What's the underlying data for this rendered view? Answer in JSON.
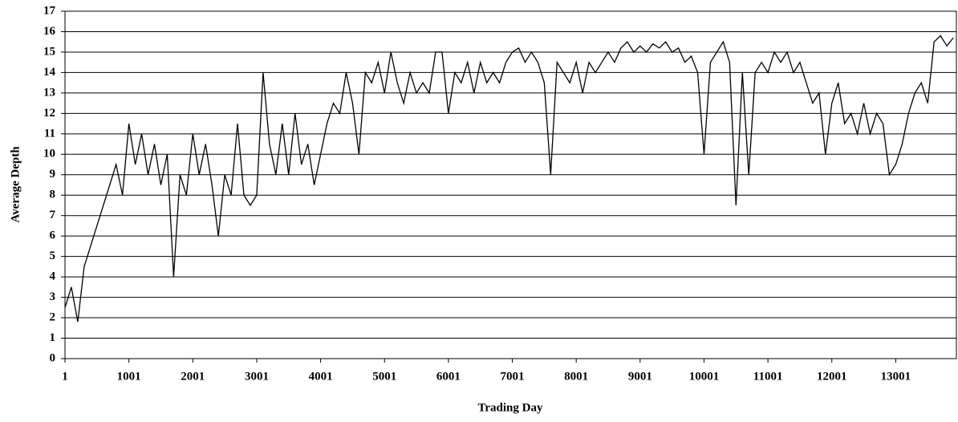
{
  "chart_data": {
    "type": "line",
    "title": null,
    "xlabel": "Trading Day",
    "ylabel": "Average Depth",
    "x": [
      1,
      101,
      201,
      301,
      401,
      501,
      601,
      701,
      801,
      901,
      1001,
      1101,
      1201,
      1301,
      1401,
      1501,
      1601,
      1701,
      1801,
      1901,
      2001,
      2101,
      2201,
      2301,
      2401,
      2501,
      2601,
      2701,
      2801,
      2901,
      3001,
      3101,
      3201,
      3301,
      3401,
      3501,
      3601,
      3701,
      3801,
      3901,
      4001,
      4101,
      4201,
      4301,
      4401,
      4501,
      4601,
      4701,
      4801,
      4901,
      5001,
      5101,
      5201,
      5301,
      5401,
      5501,
      5601,
      5701,
      5801,
      5901,
      6001,
      6101,
      6201,
      6301,
      6401,
      6501,
      6601,
      6701,
      6801,
      6901,
      7001,
      7101,
      7201,
      7301,
      7401,
      7501,
      7601,
      7701,
      7801,
      7901,
      8001,
      8101,
      8201,
      8301,
      8401,
      8501,
      8601,
      8701,
      8801,
      8901,
      9001,
      9101,
      9201,
      9301,
      9401,
      9501,
      9601,
      9701,
      9801,
      9901,
      10001,
      10101,
      10201,
      10301,
      10401,
      10501,
      10601,
      10701,
      10801,
      10901,
      11001,
      11101,
      11201,
      11301,
      11401,
      11501,
      11601,
      11701,
      11801,
      11901,
      12001,
      12101,
      12201,
      12301,
      12401,
      12501,
      12601,
      12701,
      12801,
      12901,
      13001,
      13101,
      13201,
      13301,
      13401,
      13501,
      13601,
      13701,
      13801,
      13901
    ],
    "series": [
      {
        "name": "Average Depth",
        "color": "#000000",
        "values": [
          2.5,
          3.5,
          1.8,
          4.5,
          5.5,
          6.5,
          7.5,
          8.5,
          9.5,
          8,
          11.5,
          9.5,
          11,
          9,
          10.5,
          8.5,
          10,
          4,
          9,
          8,
          11,
          9,
          10.5,
          8.5,
          6,
          9,
          8,
          11.5,
          8,
          7.5,
          8,
          14,
          10.5,
          9,
          11.5,
          9,
          12,
          9.5,
          10.5,
          8.5,
          10,
          11.5,
          12.5,
          12,
          14,
          12.5,
          10,
          14,
          13.5,
          14.5,
          13,
          15,
          13.5,
          12.5,
          14,
          13,
          13.5,
          13,
          15,
          15,
          12,
          14,
          13.5,
          14.5,
          13,
          14.5,
          13.5,
          14,
          13.5,
          14.5,
          15,
          15.2,
          14.5,
          15,
          14.5,
          13.5,
          9,
          14.5,
          14,
          13.5,
          14.5,
          13,
          14.5,
          14,
          14.5,
          15,
          14.5,
          15.2,
          15.5,
          15,
          15.3,
          15,
          15.4,
          15.2,
          15.5,
          15,
          15.2,
          14.5,
          14.8,
          14,
          10,
          14.5,
          15,
          15.5,
          14.5,
          7.5,
          14,
          9,
          14,
          14.5,
          14,
          15,
          14.5,
          15,
          14,
          14.5,
          13.5,
          12.5,
          13,
          10,
          12.5,
          13.5,
          11.5,
          12,
          11,
          12.5,
          11,
          12,
          11.5,
          9,
          9.5,
          10.5,
          12,
          13,
          13.5,
          12.5,
          15.5,
          15.8,
          15.3,
          15.7
        ]
      }
    ],
    "xlim": [
      1,
      13950
    ],
    "xticks": [
      1,
      1001,
      2001,
      3001,
      4001,
      5001,
      6001,
      7001,
      8001,
      9001,
      10001,
      11001,
      12001,
      13001
    ],
    "ylim": [
      0,
      17
    ],
    "yticks": [
      0,
      1,
      2,
      3,
      4,
      5,
      6,
      7,
      8,
      9,
      10,
      11,
      12,
      13,
      14,
      15,
      16,
      17
    ],
    "grid": true
  }
}
